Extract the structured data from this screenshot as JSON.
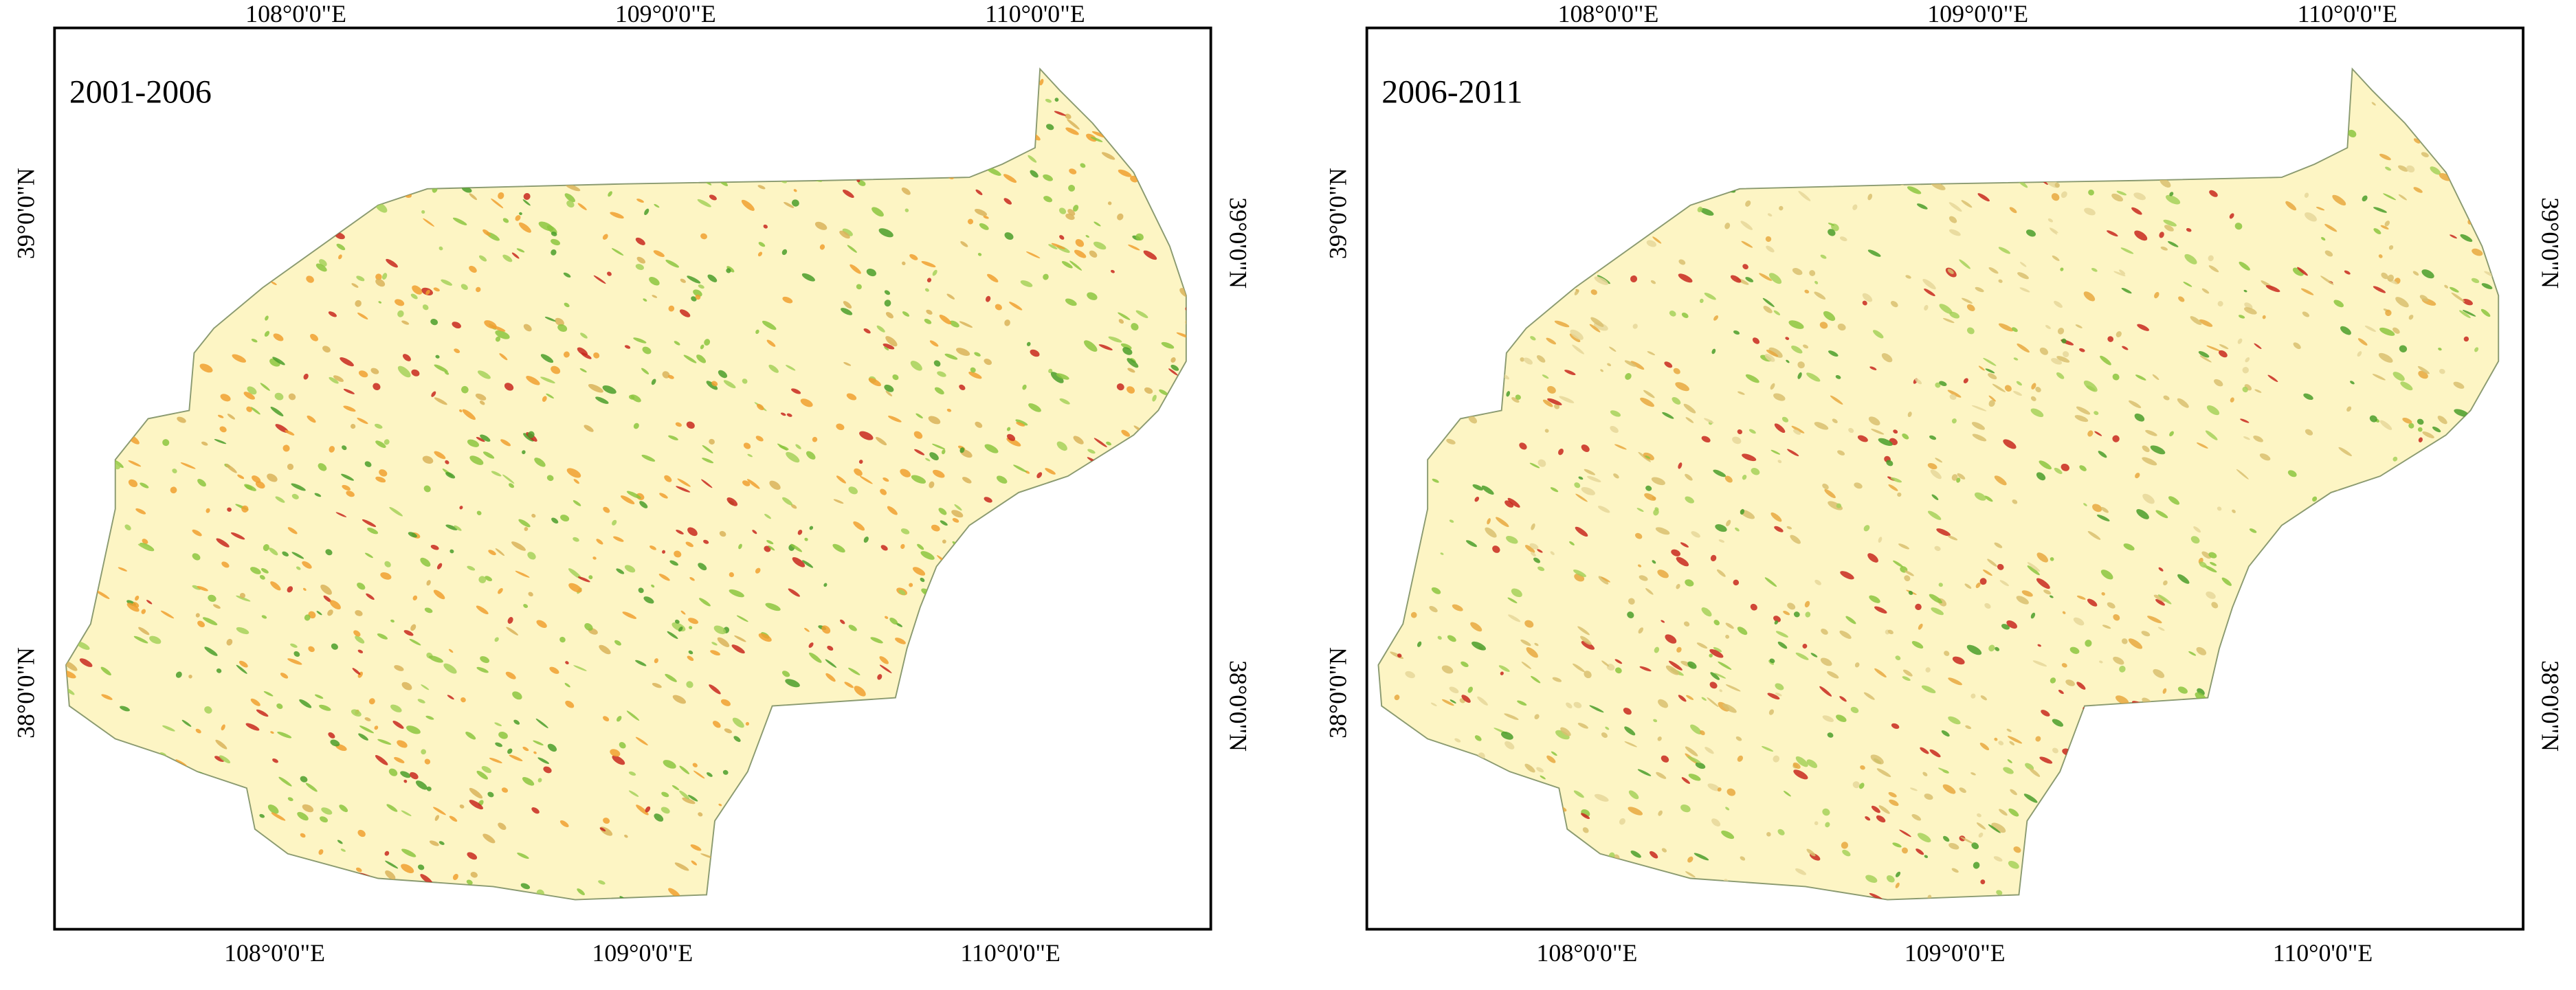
{
  "panels": [
    {
      "title": "2001-2006",
      "top_lon_labels": [
        "108°0'0\"E",
        "109°0'0\"E",
        "110°0'0\"E"
      ],
      "bottom_lon_labels": [
        "108°0'0\"E",
        "109°0'0\"E",
        "110°0'0\"E"
      ],
      "left_lat_labels": [
        "39°0'0\"N",
        "38°0'0\"N"
      ],
      "right_lat_labels": [
        "39°0'0\"N",
        "38°0'0\"N"
      ]
    },
    {
      "title": "2006-2011",
      "top_lon_labels": [
        "108°0'0\"E",
        "109°0'0\"E",
        "110°0'0\"E"
      ],
      "bottom_lon_labels": [
        "108°0'0\"E",
        "109°0'0\"E",
        "110°0'0\"E"
      ],
      "left_lat_labels": [
        "39°0'0\"N",
        "38°0'0\"N"
      ],
      "right_lat_labels": [
        "39°0'0\"N",
        "38°0'0\"N"
      ]
    }
  ]
}
